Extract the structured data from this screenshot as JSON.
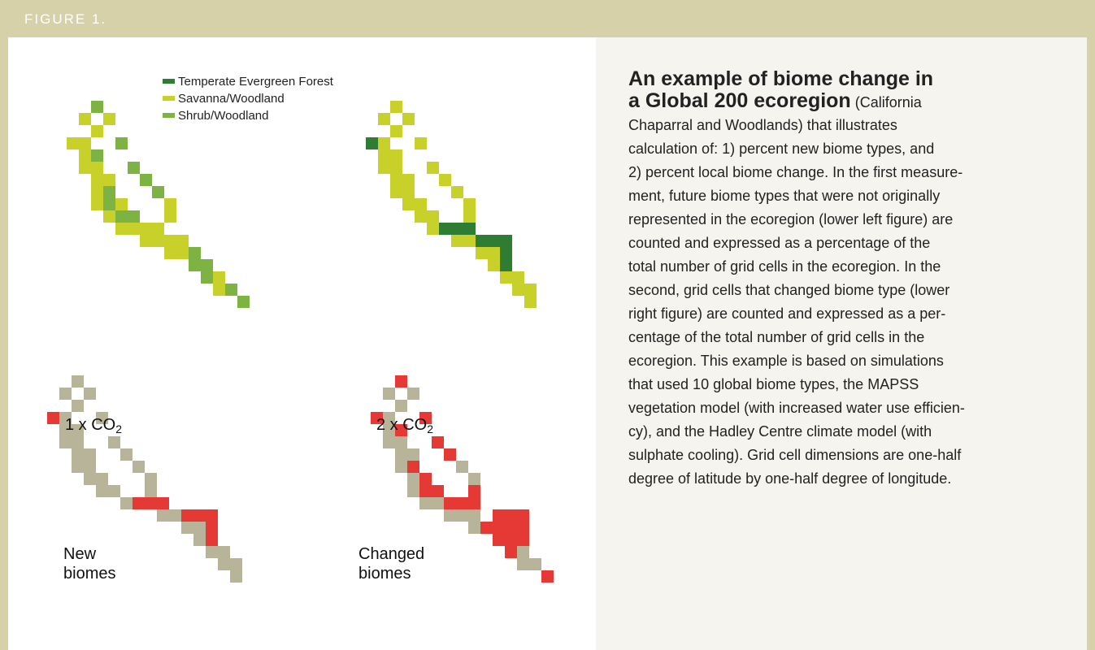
{
  "header": {
    "title": "FIGURE 1."
  },
  "legend": [
    {
      "label": "Temperate Evergreen Forest",
      "color": "#2e7d32"
    },
    {
      "label": "Savanna/Woodland",
      "color": "#c7d12a"
    },
    {
      "label": "Shrub/Woodland",
      "color": "#7cb342"
    }
  ],
  "map_labels": {
    "co2_1x_prefix": "1 x CO",
    "co2_1x_sub": "2",
    "co2_2x_prefix": "2 x CO",
    "co2_2x_sub": "2",
    "new_biomes": [
      "New",
      "biomes"
    ],
    "changed_biomes": [
      "Changed",
      "biomes"
    ]
  },
  "colors": {
    "temperate_evergreen": "#2e7d32",
    "savanna": "#c7d12a",
    "shrub": "#7cb342",
    "unchanged_gray": "#b7b49a",
    "changed_red": "#e53935",
    "header_bg": "#d7d1a9",
    "text_panel_bg": "#f5f4ee"
  },
  "description": {
    "heading_line1": "An example of biome change in",
    "heading_line2": "a Global 200 ecoregion",
    "heading_paren": " (California",
    "lines": [
      "Chaparral and Woodlands) that illustrates",
      "calculation of: 1) percent new biome types, and",
      "2) percent local biome change. In the first measure-",
      "ment, future biome types that were not originally",
      "represented in the ecoregion (lower left figure) are",
      "counted and expressed as a percentage of the",
      "total number of grid cells in the ecoregion. In the",
      "second, grid cells that changed biome type (lower",
      "right figure) are counted and expressed as a per-",
      "centage of the total number of grid cells in the",
      "ecoregion. This example is based on simulations",
      "that used 10 global biome types, the MAPSS",
      "vegetation model (with increased water use efficien-",
      "cy), and the Hadley Centre climate model (with",
      "sulphate cooling). Grid cell dimensions are one-half",
      "degree of latitude by one-half degree of longitude."
    ]
  }
}
